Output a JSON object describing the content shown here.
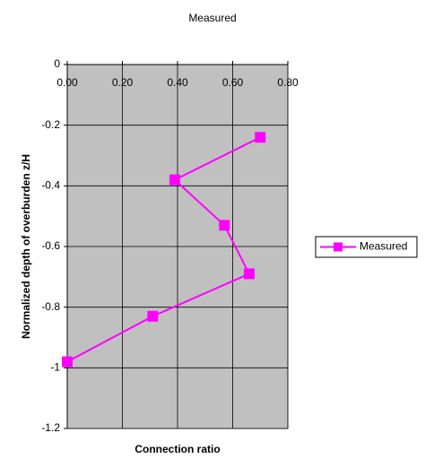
{
  "chart_data": {
    "type": "line",
    "title": "Measured",
    "x_label": "Connection ratio",
    "y_label": "Normalized depth of overburden z/H",
    "series": [
      {
        "name": "Measured",
        "color": "#ff00ff",
        "x": [
          0.7,
          0.39,
          0.57,
          0.66,
          0.31,
          0.0
        ],
        "values": [
          -0.24,
          -0.38,
          -0.53,
          -0.69,
          -0.83,
          -0.98
        ]
      }
    ],
    "xlim": [
      0,
      0.8
    ],
    "xticks": [
      {
        "value": 0,
        "label": "0.00"
      },
      {
        "value": 0.2,
        "label": "0.20"
      },
      {
        "value": 0.4,
        "label": "0.40"
      },
      {
        "value": 0.6,
        "label": "0.60"
      },
      {
        "value": 0.8,
        "label": "0.80"
      }
    ],
    "ylim": [
      -1.2,
      0
    ],
    "yticks": [
      0,
      -0.2,
      -0.4,
      -0.6,
      -0.8,
      -1,
      -1.2
    ],
    "grid": true,
    "legend": "right",
    "plot_background": "#c0c0c0"
  }
}
